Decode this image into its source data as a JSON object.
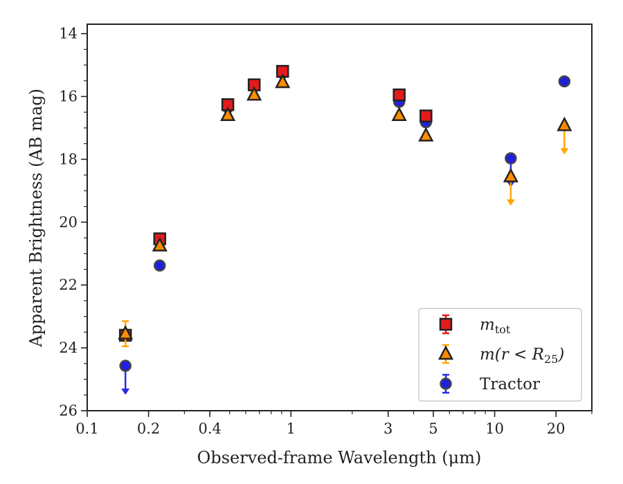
{
  "chart_data": {
    "type": "scatter",
    "title": "",
    "xlabel": "Observed-frame Wavelength (μm)",
    "ylabel": "Apparent Brightness (AB mag)",
    "xscale": "log",
    "xlim": [
      0.1,
      30
    ],
    "ylim": [
      26,
      13.7
    ],
    "y_inverted": true,
    "grid": false,
    "legend_position": "lower-right",
    "x_ticks": [
      {
        "value": 0.1,
        "label": "0.1"
      },
      {
        "value": 0.2,
        "label": "0.2"
      },
      {
        "value": 0.4,
        "label": "0.4"
      },
      {
        "value": 1,
        "label": "1"
      },
      {
        "value": 3,
        "label": "3"
      },
      {
        "value": 5,
        "label": "5"
      },
      {
        "value": 10,
        "label": "10"
      },
      {
        "value": 20,
        "label": "20"
      }
    ],
    "y_ticks": [
      {
        "value": 14,
        "label": "14"
      },
      {
        "value": 16,
        "label": "16"
      },
      {
        "value": 18,
        "label": "18"
      },
      {
        "value": 20,
        "label": "20"
      },
      {
        "value": 22,
        "label": "22"
      },
      {
        "value": 24,
        "label": "24"
      },
      {
        "value": 26,
        "label": "26"
      }
    ],
    "series": [
      {
        "name": "m_tot",
        "legend_main": "m",
        "legend_sub": "tot",
        "marker": "square",
        "color": "#e41a1c",
        "errcolor": "#e41a1c",
        "points": [
          {
            "x": 0.154,
            "y": 23.6,
            "err": 0.1,
            "limit": false
          },
          {
            "x": 0.227,
            "y": 20.53,
            "err": 0.05,
            "limit": false
          },
          {
            "x": 0.49,
            "y": 16.26,
            "err": 0.05,
            "limit": false
          },
          {
            "x": 0.66,
            "y": 15.63,
            "err": 0.05,
            "limit": false
          },
          {
            "x": 0.91,
            "y": 15.2,
            "err": 0.05,
            "limit": false
          },
          {
            "x": 3.4,
            "y": 15.95,
            "err": 0.05,
            "limit": false
          },
          {
            "x": 4.6,
            "y": 16.62,
            "err": 0.05,
            "limit": false
          }
        ]
      },
      {
        "name": "m(r < R25)",
        "legend_main": "m(r < R",
        "legend_sub": "25",
        "legend_tail": ")",
        "marker": "triangle",
        "color": "#ff8c00",
        "errcolor": "#ffa500",
        "points": [
          {
            "x": 0.154,
            "y": 23.55,
            "err": 0.4,
            "limit": false
          },
          {
            "x": 0.227,
            "y": 20.75,
            "err": 0.08,
            "limit": false
          },
          {
            "x": 0.49,
            "y": 16.6,
            "err": 0.05,
            "limit": false
          },
          {
            "x": 0.66,
            "y": 15.95,
            "err": 0.05,
            "limit": false
          },
          {
            "x": 0.91,
            "y": 15.55,
            "err": 0.05,
            "limit": false
          },
          {
            "x": 3.4,
            "y": 16.6,
            "err": 0.05,
            "limit": false
          },
          {
            "x": 4.6,
            "y": 17.25,
            "err": 0.05,
            "limit": false
          },
          {
            "x": 12,
            "y": 18.55,
            "err": 0.05,
            "limit": true
          },
          {
            "x": 22,
            "y": 16.92,
            "err": 0.05,
            "limit": true
          }
        ]
      },
      {
        "name": "Tractor",
        "legend_main": "Tractor",
        "marker": "circle",
        "color": "#1f1fe0",
        "errcolor": "#2a2ae6",
        "points": [
          {
            "x": 0.154,
            "y": 24.57,
            "err": 0.05,
            "limit": true
          },
          {
            "x": 0.227,
            "y": 21.38,
            "err": 0.05,
            "limit": false
          },
          {
            "x": 0.49,
            "y": 16.35,
            "err": 0.05,
            "limit": false
          },
          {
            "x": 0.66,
            "y": 15.68,
            "err": 0.05,
            "limit": false
          },
          {
            "x": 0.91,
            "y": 15.25,
            "err": 0.05,
            "limit": false
          },
          {
            "x": 3.4,
            "y": 16.17,
            "err": 0.05,
            "limit": false
          },
          {
            "x": 4.6,
            "y": 16.82,
            "err": 0.05,
            "limit": false
          },
          {
            "x": 12,
            "y": 17.97,
            "err": 0.3,
            "limit": true
          },
          {
            "x": 22,
            "y": 15.52,
            "err": 0.05,
            "limit": false
          }
        ]
      }
    ]
  }
}
